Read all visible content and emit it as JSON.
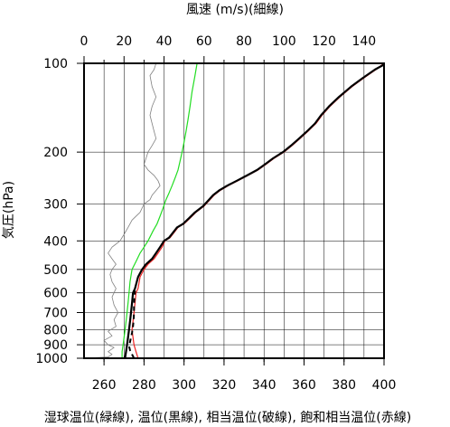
{
  "chart_data": {
    "type": "line",
    "title": "",
    "xlabel": "湿球温位(緑線), 温位(黒線), 相当温位(破線), 飽和相当温位(赤線)",
    "x2label": "風速 (m/s)(細線)",
    "ylabel": "気圧(hPa)",
    "xlim": [
      250,
      400
    ],
    "x2lim": [
      0,
      150
    ],
    "ylim": [
      1000,
      100
    ],
    "yscale": "log",
    "grid": true,
    "x_ticks": [
      260,
      280,
      300,
      320,
      340,
      360,
      380,
      400
    ],
    "x2_ticks": [
      0,
      20,
      40,
      60,
      80,
      100,
      120,
      140
    ],
    "y_ticks": [
      100,
      200,
      300,
      400,
      500,
      600,
      700,
      800,
      900,
      1000
    ],
    "series": [
      {
        "id": "wind",
        "axis": "top",
        "color": "#808080",
        "style": "thin",
        "points": [
          [
            0,
            1000
          ],
          [
            12,
            990
          ],
          [
            14,
            970
          ],
          [
            12,
            950
          ],
          [
            15,
            920
          ],
          [
            12,
            900
          ],
          [
            10,
            870
          ],
          [
            14,
            840
          ],
          [
            12,
            810
          ],
          [
            16,
            780
          ],
          [
            15,
            740
          ],
          [
            17,
            700
          ],
          [
            15,
            660
          ],
          [
            14,
            620
          ],
          [
            16,
            580
          ],
          [
            14,
            550
          ],
          [
            13,
            520
          ],
          [
            14,
            500
          ],
          [
            16,
            480
          ],
          [
            14,
            460
          ],
          [
            12,
            440
          ],
          [
            14,
            420
          ],
          [
            18,
            400
          ],
          [
            20,
            380
          ],
          [
            22,
            360
          ],
          [
            24,
            340
          ],
          [
            28,
            320
          ],
          [
            30,
            300
          ],
          [
            33,
            290
          ],
          [
            34,
            280
          ],
          [
            36,
            270
          ],
          [
            38,
            260
          ],
          [
            37,
            250
          ],
          [
            35,
            240
          ],
          [
            32,
            230
          ],
          [
            30,
            220
          ],
          [
            31,
            210
          ],
          [
            32,
            200
          ],
          [
            34,
            190
          ],
          [
            36,
            180
          ],
          [
            35,
            170
          ],
          [
            34,
            160
          ],
          [
            33,
            150
          ],
          [
            34,
            140
          ],
          [
            36,
            130
          ],
          [
            34,
            120
          ],
          [
            33,
            110
          ],
          [
            35,
            105
          ],
          [
            36,
            100
          ]
        ]
      },
      {
        "id": "wet_bulb_potential_temperature",
        "axis": "bottom",
        "color": "#22dd22",
        "style": "solid",
        "points": [
          [
            269,
            1000
          ],
          [
            269,
            950
          ],
          [
            269.5,
            900
          ],
          [
            270,
            850
          ],
          [
            270.5,
            800
          ],
          [
            271,
            750
          ],
          [
            271.5,
            700
          ],
          [
            272,
            650
          ],
          [
            272.5,
            600
          ],
          [
            273,
            550
          ],
          [
            274,
            500
          ],
          [
            276,
            470
          ],
          [
            278,
            440
          ],
          [
            280,
            420
          ],
          [
            282,
            400
          ],
          [
            284.5,
            370
          ],
          [
            286.5,
            350
          ],
          [
            288,
            330
          ],
          [
            289.5,
            310
          ],
          [
            291,
            290
          ],
          [
            292.5,
            275
          ],
          [
            294,
            260
          ],
          [
            295.5,
            245
          ],
          [
            297,
            230
          ],
          [
            298,
            215
          ],
          [
            299,
            200
          ],
          [
            300,
            185
          ],
          [
            301,
            170
          ],
          [
            302,
            155
          ],
          [
            303,
            140
          ],
          [
            304,
            125
          ],
          [
            305.5,
            110
          ],
          [
            306.5,
            100
          ]
        ]
      },
      {
        "id": "saturated_equivalent_potential_temperature",
        "axis": "bottom",
        "color": "#ee2222",
        "style": "solid",
        "points": [
          [
            277,
            1000
          ],
          [
            276,
            950
          ],
          [
            275,
            900
          ],
          [
            274.5,
            850
          ],
          [
            274,
            800
          ],
          [
            274.5,
            750
          ],
          [
            275,
            700
          ],
          [
            275.5,
            650
          ],
          [
            276,
            600
          ],
          [
            277,
            580
          ],
          [
            278,
            530
          ],
          [
            280,
            500
          ],
          [
            282,
            480
          ],
          [
            285,
            460
          ],
          [
            287,
            440
          ],
          [
            289,
            420
          ],
          [
            290.5,
            400
          ],
          [
            293,
            390
          ],
          [
            295,
            375
          ],
          [
            297,
            360
          ],
          [
            300,
            350
          ],
          [
            303,
            335
          ],
          [
            306,
            320
          ],
          [
            310,
            305
          ],
          [
            313,
            290
          ],
          [
            315,
            280
          ],
          [
            318,
            270
          ],
          [
            322,
            260
          ],
          [
            327,
            250
          ],
          [
            332,
            240
          ],
          [
            337,
            230
          ],
          [
            341,
            220
          ],
          [
            345,
            210
          ],
          [
            350,
            200
          ],
          [
            354,
            190
          ],
          [
            358,
            180
          ],
          [
            362,
            170
          ],
          [
            366,
            160
          ],
          [
            369,
            150
          ],
          [
            373,
            140
          ],
          [
            378,
            130
          ],
          [
            384,
            120
          ],
          [
            390,
            112
          ],
          [
            396,
            105
          ],
          [
            400,
            100
          ]
        ]
      },
      {
        "id": "potential_temperature",
        "axis": "bottom",
        "color": "#000000",
        "style": "solid",
        "points": [
          [
            270.5,
            1000
          ],
          [
            271,
            950
          ],
          [
            271.5,
            900
          ],
          [
            272,
            850
          ],
          [
            272.5,
            800
          ],
          [
            273,
            750
          ],
          [
            273.5,
            700
          ],
          [
            274,
            650
          ],
          [
            274.5,
            600
          ],
          [
            275.5,
            580
          ],
          [
            277,
            530
          ],
          [
            279,
            500
          ],
          [
            281,
            480
          ],
          [
            284,
            460
          ],
          [
            286,
            440
          ],
          [
            288,
            420
          ],
          [
            290,
            400
          ],
          [
            292.5,
            390
          ],
          [
            294.5,
            375
          ],
          [
            296.5,
            360
          ],
          [
            299.5,
            350
          ],
          [
            302.5,
            335
          ],
          [
            305.5,
            320
          ],
          [
            309.5,
            305
          ],
          [
            312.5,
            290
          ],
          [
            314.5,
            280
          ],
          [
            317.5,
            270
          ],
          [
            321.5,
            260
          ],
          [
            326.5,
            250
          ],
          [
            331.5,
            240
          ],
          [
            336.5,
            230
          ],
          [
            340.5,
            220
          ],
          [
            344.5,
            210
          ],
          [
            349.5,
            200
          ],
          [
            353.5,
            190
          ],
          [
            357.5,
            180
          ],
          [
            361.5,
            170
          ],
          [
            365.5,
            160
          ],
          [
            368.5,
            150
          ],
          [
            372.5,
            140
          ],
          [
            377.5,
            130
          ],
          [
            383.5,
            120
          ],
          [
            389.5,
            112
          ],
          [
            395.5,
            105
          ],
          [
            400,
            101
          ]
        ]
      },
      {
        "id": "equivalent_potential_temperature",
        "axis": "bottom",
        "color": "#000000",
        "style": "dashed",
        "points": [
          [
            275,
            1000
          ],
          [
            274,
            970
          ],
          [
            273,
            940
          ],
          [
            272.5,
            910
          ],
          [
            273,
            880
          ],
          [
            273.5,
            850
          ],
          [
            274,
            820
          ],
          [
            274.5,
            780
          ],
          [
            274.8,
            740
          ],
          [
            275,
            700
          ],
          [
            275,
            660
          ],
          [
            275.2,
            620
          ],
          [
            275.5,
            590
          ]
        ]
      }
    ]
  }
}
